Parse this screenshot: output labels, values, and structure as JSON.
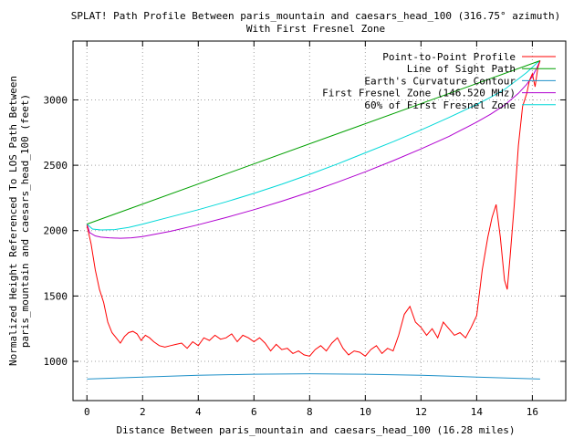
{
  "chart_data": {
    "type": "line",
    "title": "SPLAT! Path Profile Between paris_mountain and caesars_head_100 (316.75° azimuth)",
    "subtitle": "With First Fresnel Zone",
    "xlabel": "Distance Between paris_mountain and caesars_head_100 (16.28 miles)",
    "ylabel_lines": [
      "Normalized Height Referenced To LOS Path Between",
      "paris_mountain and caesars_head_100 (feet)"
    ],
    "xlim": [
      -0.5,
      17.2
    ],
    "ylim": [
      700,
      3450
    ],
    "x_ticks": [
      0,
      2,
      4,
      6,
      8,
      10,
      12,
      14,
      16
    ],
    "y_ticks": [
      1000,
      1500,
      2000,
      2500,
      3000
    ],
    "grid": true,
    "legend_position": "top-right",
    "series": [
      {
        "name": "Point-to-Point Profile",
        "color": "#ff0000",
        "x": [
          0,
          0.15,
          0.3,
          0.45,
          0.6,
          0.75,
          0.9,
          1.05,
          1.2,
          1.35,
          1.5,
          1.65,
          1.8,
          1.95,
          2.1,
          2.25,
          2.4,
          2.6,
          2.8,
          3.0,
          3.2,
          3.4,
          3.6,
          3.8,
          4.0,
          4.2,
          4.4,
          4.6,
          4.8,
          5.0,
          5.2,
          5.4,
          5.6,
          5.8,
          6.0,
          6.2,
          6.4,
          6.6,
          6.8,
          7.0,
          7.2,
          7.4,
          7.6,
          7.8,
          8.0,
          8.2,
          8.4,
          8.6,
          8.8,
          9.0,
          9.2,
          9.4,
          9.6,
          9.8,
          10.0,
          10.2,
          10.4,
          10.6,
          10.8,
          11.0,
          11.2,
          11.4,
          11.6,
          11.8,
          12.0,
          12.2,
          12.4,
          12.6,
          12.8,
          13.0,
          13.2,
          13.4,
          13.6,
          13.8,
          14.0,
          14.2,
          14.4,
          14.55,
          14.7,
          14.85,
          15.0,
          15.1,
          15.2,
          15.35,
          15.5,
          15.65,
          15.8,
          15.9,
          16.0,
          16.1,
          16.2,
          16.28
        ],
        "values": [
          2040,
          1900,
          1700,
          1550,
          1450,
          1300,
          1220,
          1180,
          1140,
          1190,
          1220,
          1230,
          1210,
          1160,
          1200,
          1180,
          1150,
          1120,
          1110,
          1120,
          1130,
          1140,
          1100,
          1150,
          1120,
          1180,
          1160,
          1200,
          1170,
          1180,
          1210,
          1150,
          1200,
          1180,
          1150,
          1180,
          1140,
          1080,
          1130,
          1090,
          1100,
          1060,
          1080,
          1050,
          1040,
          1090,
          1120,
          1080,
          1140,
          1180,
          1100,
          1050,
          1080,
          1070,
          1040,
          1090,
          1120,
          1060,
          1100,
          1080,
          1200,
          1360,
          1420,
          1300,
          1260,
          1200,
          1250,
          1180,
          1300,
          1250,
          1200,
          1220,
          1180,
          1260,
          1350,
          1700,
          1950,
          2100,
          2200,
          1950,
          1620,
          1550,
          1800,
          2200,
          2650,
          2950,
          3050,
          3150,
          3200,
          3100,
          3250,
          3300
        ]
      },
      {
        "name": "Line of Sight Path",
        "color": "#00a000",
        "x": [
          0,
          16.28
        ],
        "values": [
          2050,
          3300
        ]
      },
      {
        "name": "Earth's Curvature Contour",
        "color": "#1e90c8",
        "x": [
          0,
          2,
          4,
          6,
          8,
          10,
          12,
          14,
          16.28
        ],
        "values": [
          865,
          880,
          893,
          902,
          905,
          902,
          893,
          880,
          865
        ]
      },
      {
        "name": "First Fresnel Zone (146.520 MHz)",
        "color": "#b000d0",
        "x": [
          0,
          0.1,
          0.3,
          0.5,
          0.8,
          1.2,
          1.6,
          2,
          3,
          4,
          5,
          6,
          7,
          8,
          9,
          10,
          11,
          12,
          13,
          14,
          14.5,
          15,
          15.5,
          15.8,
          16,
          16.15,
          16.28
        ],
        "values": [
          2050,
          1985,
          1960,
          1950,
          1945,
          1942,
          1945,
          1955,
          1995,
          2045,
          2100,
          2160,
          2225,
          2295,
          2370,
          2450,
          2535,
          2625,
          2720,
          2830,
          2890,
          2960,
          3050,
          3120,
          3180,
          3240,
          3300
        ]
      },
      {
        "name": "60% of First Fresnel Zone",
        "color": "#00d8d8",
        "x": [
          0,
          0.2,
          0.5,
          1,
          1.5,
          2,
          3,
          4,
          5,
          6,
          7,
          8,
          9,
          10,
          11,
          12,
          13,
          14,
          14.5,
          15,
          15.5,
          15.8,
          16,
          16.15,
          16.28
        ],
        "values": [
          2050,
          2012,
          2005,
          2008,
          2025,
          2050,
          2105,
          2160,
          2220,
          2285,
          2355,
          2430,
          2510,
          2595,
          2680,
          2770,
          2865,
          2965,
          3020,
          3080,
          3160,
          3210,
          3250,
          3280,
          3300
        ]
      }
    ]
  }
}
